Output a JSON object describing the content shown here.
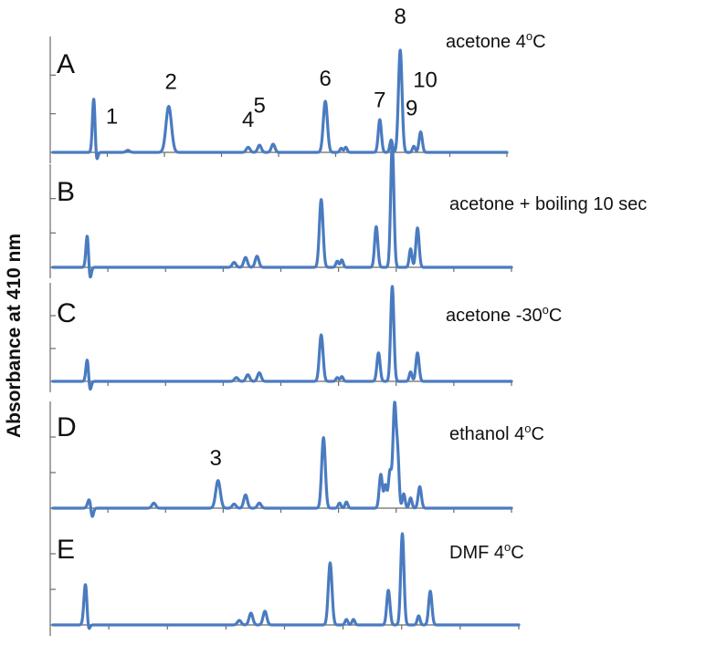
{
  "chart_data": {
    "type": "line",
    "ylabel": "Absorbance at 410 nm",
    "line_color": "#4a7bc0",
    "panels": [
      {
        "letter": "A",
        "condition": "acetone 4",
        "unit": "C",
        "peaks": [
          {
            "t": 0.09,
            "h": 0.55,
            "w": 0.003
          },
          {
            "t": 0.165,
            "h": 0.02,
            "w": 0.004
          },
          {
            "t": 0.255,
            "h": 0.45,
            "w": 0.006
          },
          {
            "t": 0.43,
            "h": 0.05,
            "w": 0.004
          },
          {
            "t": 0.455,
            "h": 0.07,
            "w": 0.004
          },
          {
            "t": 0.485,
            "h": 0.08,
            "w": 0.004
          },
          {
            "t": 0.6,
            "h": 0.5,
            "w": 0.0045
          },
          {
            "t": 0.635,
            "h": 0.04,
            "w": 0.003
          },
          {
            "t": 0.645,
            "h": 0.05,
            "w": 0.003
          },
          {
            "t": 0.72,
            "h": 0.32,
            "w": 0.0035
          },
          {
            "t": 0.745,
            "h": 0.12,
            "w": 0.003
          },
          {
            "t": 0.765,
            "h": 1.0,
            "w": 0.004
          },
          {
            "t": 0.795,
            "h": 0.06,
            "w": 0.003
          },
          {
            "t": 0.81,
            "h": 0.2,
            "w": 0.0035
          }
        ],
        "labels": [
          {
            "text": "1",
            "t": 0.13,
            "h": 0.28
          },
          {
            "text": "2",
            "t": 0.26,
            "h": 0.62
          },
          {
            "text": "4",
            "t": 0.43,
            "h": 0.25
          },
          {
            "text": "5",
            "t": 0.455,
            "h": 0.39
          },
          {
            "text": "6",
            "t": 0.6,
            "h": 0.65
          },
          {
            "text": "7",
            "t": 0.72,
            "h": 0.44
          },
          {
            "text": "8",
            "t": 0.765,
            "h": 1.26
          },
          {
            "text": "9",
            "t": 0.79,
            "h": 0.36
          },
          {
            "text": "10",
            "t": 0.82,
            "h": 0.64
          }
        ]
      },
      {
        "letter": "B",
        "condition": "acetone + boiling 10 sec",
        "unit": "",
        "peaks": [
          {
            "t": 0.075,
            "h": 0.28,
            "w": 0.003
          },
          {
            "t": 0.395,
            "h": 0.04,
            "w": 0.004
          },
          {
            "t": 0.42,
            "h": 0.08,
            "w": 0.004
          },
          {
            "t": 0.445,
            "h": 0.09,
            "w": 0.004
          },
          {
            "t": 0.585,
            "h": 0.55,
            "w": 0.004
          },
          {
            "t": 0.62,
            "h": 0.05,
            "w": 0.003
          },
          {
            "t": 0.63,
            "h": 0.06,
            "w": 0.003
          },
          {
            "t": 0.705,
            "h": 0.33,
            "w": 0.0035
          },
          {
            "t": 0.74,
            "h": 1.0,
            "w": 0.0035
          },
          {
            "t": 0.78,
            "h": 0.15,
            "w": 0.003
          },
          {
            "t": 0.795,
            "h": 0.32,
            "w": 0.0035
          }
        ],
        "labels": []
      },
      {
        "letter": "C",
        "condition": "acetone -30",
        "unit": "C",
        "peaks": [
          {
            "t": 0.075,
            "h": 0.25,
            "w": 0.003
          },
          {
            "t": 0.4,
            "h": 0.04,
            "w": 0.004
          },
          {
            "t": 0.425,
            "h": 0.07,
            "w": 0.004
          },
          {
            "t": 0.45,
            "h": 0.09,
            "w": 0.004
          },
          {
            "t": 0.585,
            "h": 0.49,
            "w": 0.004
          },
          {
            "t": 0.62,
            "h": 0.04,
            "w": 0.003
          },
          {
            "t": 0.63,
            "h": 0.05,
            "w": 0.003
          },
          {
            "t": 0.71,
            "h": 0.3,
            "w": 0.0035
          },
          {
            "t": 0.74,
            "h": 1.0,
            "w": 0.0035
          },
          {
            "t": 0.78,
            "h": 0.1,
            "w": 0.003
          },
          {
            "t": 0.795,
            "h": 0.3,
            "w": 0.0035
          }
        ],
        "labels": []
      },
      {
        "letter": "D",
        "condition": "ethanol 4",
        "unit": "C",
        "peaks": [
          {
            "t": 0.08,
            "h": 0.1,
            "w": 0.004
          },
          {
            "t": 0.22,
            "h": 0.05,
            "w": 0.004
          },
          {
            "t": 0.36,
            "h": 0.27,
            "w": 0.005
          },
          {
            "t": 0.395,
            "h": 0.04,
            "w": 0.004
          },
          {
            "t": 0.42,
            "h": 0.13,
            "w": 0.004
          },
          {
            "t": 0.45,
            "h": 0.05,
            "w": 0.004
          },
          {
            "t": 0.59,
            "h": 0.69,
            "w": 0.004
          },
          {
            "t": 0.625,
            "h": 0.05,
            "w": 0.003
          },
          {
            "t": 0.64,
            "h": 0.06,
            "w": 0.003
          },
          {
            "t": 0.715,
            "h": 0.33,
            "w": 0.0035
          },
          {
            "t": 0.725,
            "h": 0.22,
            "w": 0.003
          },
          {
            "t": 0.735,
            "h": 0.36,
            "w": 0.0035
          },
          {
            "t": 0.745,
            "h": 1.0,
            "w": 0.0035
          },
          {
            "t": 0.752,
            "h": 0.47,
            "w": 0.003
          },
          {
            "t": 0.765,
            "h": 0.14,
            "w": 0.003
          },
          {
            "t": 0.78,
            "h": 0.1,
            "w": 0.003
          },
          {
            "t": 0.8,
            "h": 0.21,
            "w": 0.0035
          }
        ],
        "labels": [
          {
            "text": "3",
            "t": 0.355,
            "h": 0.42
          }
        ]
      },
      {
        "letter": "E",
        "condition": "DMF 4",
        "unit": "C",
        "peaks": [
          {
            "t": 0.07,
            "h": 0.47,
            "w": 0.0035
          },
          {
            "t": 0.4,
            "h": 0.05,
            "w": 0.004
          },
          {
            "t": 0.425,
            "h": 0.13,
            "w": 0.004
          },
          {
            "t": 0.455,
            "h": 0.15,
            "w": 0.004
          },
          {
            "t": 0.595,
            "h": 0.68,
            "w": 0.004
          },
          {
            "t": 0.63,
            "h": 0.06,
            "w": 0.003
          },
          {
            "t": 0.645,
            "h": 0.06,
            "w": 0.003
          },
          {
            "t": 0.72,
            "h": 0.38,
            "w": 0.0035
          },
          {
            "t": 0.75,
            "h": 1.0,
            "w": 0.0035
          },
          {
            "t": 0.785,
            "h": 0.1,
            "w": 0.003
          },
          {
            "t": 0.81,
            "h": 0.37,
            "w": 0.0035
          }
        ],
        "labels": []
      }
    ]
  }
}
